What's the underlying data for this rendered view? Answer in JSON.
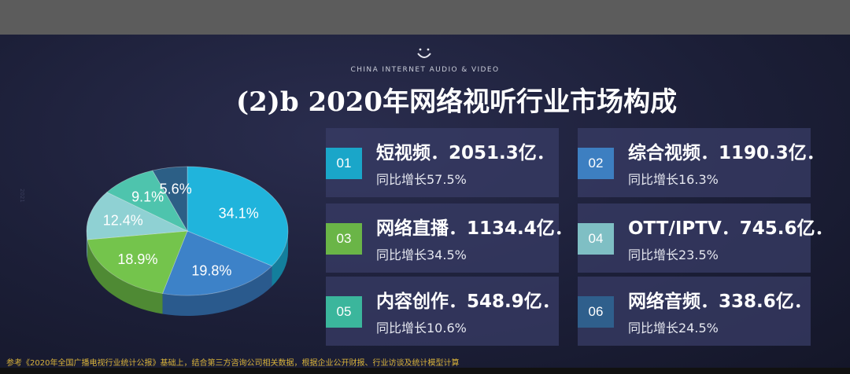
{
  "header": {
    "subtitle_en": "CHINA INTERNET AUDIO & VIDEO",
    "title": "(2)b 2020年网络视听行业市场构成"
  },
  "side_mark": "2021",
  "cards": [
    {
      "num": "01",
      "main": "短视频．2051.3亿．",
      "sub": "同比增长57.5%",
      "color": "#1aa6c9"
    },
    {
      "num": "02",
      "main": "综合视频．1190.3亿．",
      "sub": "同比增长16.3%",
      "color": "#3d7fc1"
    },
    {
      "num": "03",
      "main": "网络直播．1134.4亿．",
      "sub": "同比增长34.5%",
      "color": "#6ab547"
    },
    {
      "num": "04",
      "main": "OTT/IPTV．745.6亿．",
      "sub": "同比增长23.5%",
      "color": "#7fbfc4"
    },
    {
      "num": "05",
      "main": "内容创作．548.9亿．",
      "sub": "同比增长10.6%",
      "color": "#3bb69c"
    },
    {
      "num": "06",
      "main": "网络音频．338.6亿．",
      "sub": "同比增长24.5%",
      "color": "#2f5f8c"
    }
  ],
  "chart_data": {
    "type": "pie",
    "values": [
      34.1,
      19.8,
      18.9,
      12.4,
      9.1,
      5.6
    ],
    "labels": [
      "34.1%",
      "19.8%",
      "18.9%",
      "12.4%",
      "9.1%",
      "5.6%"
    ],
    "colors": [
      "#20b4dc",
      "#3d82c8",
      "#74c44c",
      "#8fd1d3",
      "#4ec4ad",
      "#2c5f86"
    ],
    "side_colors": [
      "#137f9c",
      "#2a5a8d",
      "#4f8a34",
      "#669a9c",
      "#35897a",
      "#1e425e"
    ]
  },
  "footnote": "参考《2020年全国广播电视行业统计公报》基础上，结合第三方咨询公司相关数据，根据企业公开财报、行业访谈及统计模型计算"
}
